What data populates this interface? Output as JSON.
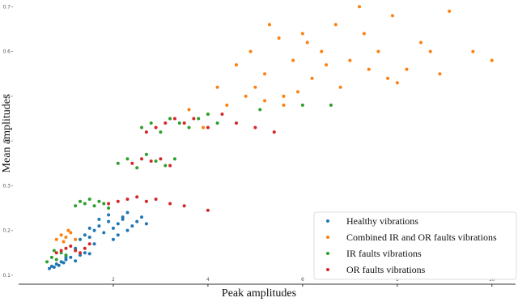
{
  "chart_data": {
    "type": "scatter",
    "xlabel": "Peak amplitudes",
    "ylabel": "Mean amplitudes",
    "xlim": [
      0,
      10.5
    ],
    "ylim": [
      0.08,
      0.715
    ],
    "xticks": [
      2,
      4,
      6,
      8,
      10
    ],
    "yticks": [
      0.1,
      0.2,
      0.3,
      0.4,
      0.5,
      0.6,
      0.7
    ],
    "legend": "lower right",
    "series": [
      {
        "name": "Healthy vibrations",
        "color": "#1f77b4",
        "x": [
          0.65,
          0.7,
          0.75,
          0.8,
          0.85,
          0.9,
          0.95,
          1.0,
          1.1,
          1.2,
          1.3,
          1.4,
          1.5,
          1.3,
          1.4,
          1.5,
          1.6,
          1.7,
          1.8,
          1.9,
          2.0,
          2.1,
          2.2,
          2.3,
          2.4,
          2.5,
          2.6,
          1.5,
          1.7,
          1.9,
          2.1,
          2.3,
          1.6,
          2.0,
          2.2,
          2.7,
          1.2,
          1.0
        ],
        "y": [
          0.115,
          0.12,
          0.118,
          0.125,
          0.122,
          0.13,
          0.128,
          0.135,
          0.14,
          0.132,
          0.145,
          0.15,
          0.148,
          0.18,
          0.19,
          0.185,
          0.2,
          0.21,
          0.195,
          0.22,
          0.205,
          0.215,
          0.225,
          0.2,
          0.21,
          0.22,
          0.23,
          0.205,
          0.225,
          0.235,
          0.19,
          0.24,
          0.17,
          0.18,
          0.23,
          0.215,
          0.16,
          0.14
        ]
      },
      {
        "name": "Combined IR and OR faults vibrations",
        "color": "#ff7f0e",
        "x": [
          0.8,
          0.9,
          1.0,
          1.1,
          1.2,
          0.95,
          1.05,
          3.2,
          3.6,
          4.0,
          4.4,
          4.8,
          5.2,
          5.6,
          3.9,
          4.6,
          4.9,
          5.2,
          5.5,
          5.8,
          6.1,
          6.4,
          6.7,
          7.0,
          7.3,
          7.6,
          7.9,
          8.2,
          8.5,
          5.0,
          5.6,
          6.2,
          6.8,
          7.4,
          8.0,
          8.7,
          9.6,
          10.0,
          9.1,
          7.2,
          6.0,
          5.3,
          4.2,
          6.5,
          7.8,
          8.9,
          5.9
        ],
        "y": [
          0.18,
          0.19,
          0.185,
          0.195,
          0.18,
          0.175,
          0.2,
          0.45,
          0.47,
          0.46,
          0.48,
          0.5,
          0.49,
          0.48,
          0.43,
          0.57,
          0.6,
          0.55,
          0.63,
          0.58,
          0.62,
          0.6,
          0.66,
          0.58,
          0.64,
          0.6,
          0.68,
          0.56,
          0.62,
          0.52,
          0.5,
          0.54,
          0.52,
          0.56,
          0.53,
          0.6,
          0.6,
          0.58,
          0.69,
          0.7,
          0.64,
          0.66,
          0.52,
          0.57,
          0.54,
          0.55,
          0.51
        ]
      },
      {
        "name": "IR faults vibrations",
        "color": "#2ca02c",
        "x": [
          0.6,
          0.7,
          0.8,
          0.9,
          1.0,
          0.75,
          1.2,
          1.3,
          1.4,
          1.5,
          1.6,
          1.7,
          1.8,
          1.9,
          2.1,
          2.3,
          2.5,
          2.7,
          2.9,
          3.1,
          3.3,
          2.6,
          2.8,
          3.0,
          3.2,
          3.4,
          3.6,
          3.8,
          4.0,
          4.2,
          5.1,
          6.0,
          6.6
        ],
        "y": [
          0.13,
          0.14,
          0.135,
          0.15,
          0.145,
          0.155,
          0.255,
          0.265,
          0.26,
          0.27,
          0.255,
          0.265,
          0.26,
          0.25,
          0.35,
          0.36,
          0.34,
          0.37,
          0.355,
          0.345,
          0.36,
          0.43,
          0.44,
          0.42,
          0.45,
          0.44,
          0.43,
          0.45,
          0.46,
          0.44,
          0.47,
          0.48,
          0.48
        ]
      },
      {
        "name": "OR faults vibrations",
        "color": "#d62728",
        "x": [
          0.8,
          0.9,
          1.0,
          1.1,
          1.2,
          1.3,
          1.4,
          1.5,
          1.9,
          2.1,
          2.3,
          2.5,
          2.7,
          2.9,
          3.2,
          3.5,
          4.0,
          2.4,
          2.6,
          2.8,
          3.0,
          3.2,
          2.7,
          2.9,
          3.1,
          3.3,
          3.5,
          3.7,
          4.0,
          4.3,
          4.6,
          5.0,
          5.4
        ],
        "y": [
          0.15,
          0.155,
          0.16,
          0.165,
          0.155,
          0.15,
          0.16,
          0.17,
          0.26,
          0.265,
          0.27,
          0.275,
          0.265,
          0.27,
          0.26,
          0.255,
          0.245,
          0.35,
          0.36,
          0.355,
          0.36,
          0.345,
          0.42,
          0.43,
          0.44,
          0.45,
          0.44,
          0.45,
          0.43,
          0.46,
          0.44,
          0.43,
          0.42
        ]
      }
    ]
  }
}
